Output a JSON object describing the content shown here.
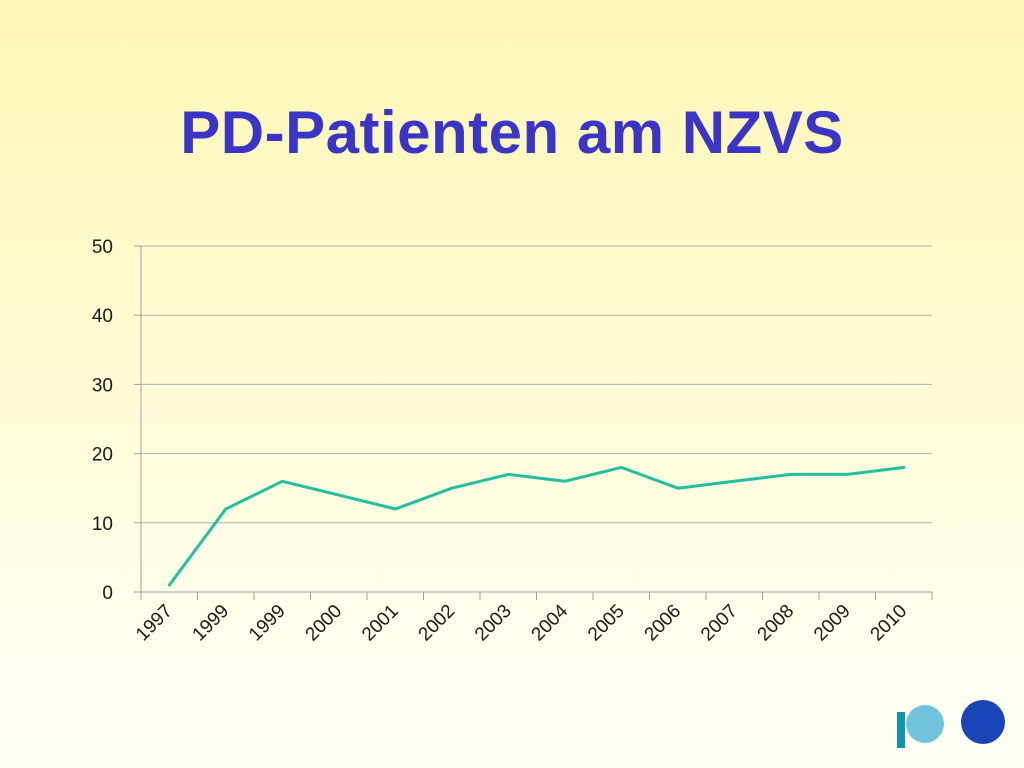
{
  "slide": {
    "title": "PD-Patienten am NZVS",
    "title_color": "#3a35c6"
  },
  "chart_data": {
    "type": "line",
    "categories": [
      "1997",
      "1999",
      "1999",
      "2000",
      "2001",
      "2002",
      "2003",
      "2004",
      "2005",
      "2006",
      "2007",
      "2008",
      "2009",
      "2010"
    ],
    "series": [
      {
        "values": [
          1,
          12,
          16,
          14,
          12,
          15,
          17,
          16,
          18,
          15,
          16,
          17,
          17,
          18
        ],
        "color": "#20c0a0"
      }
    ],
    "title": "",
    "xlabel": "",
    "ylabel": "",
    "ylim": [
      0,
      50
    ],
    "yticks": [
      0,
      10,
      20,
      30,
      40,
      50
    ],
    "grid": true,
    "legend": "none",
    "gridline_color": "#b0b0b0",
    "axis_color": "#a0a0a0"
  },
  "logo": {
    "left_color": "#6fc3dc",
    "bar_color": "#0f93b0",
    "right_color": "#1a45b8",
    "icon": "hospital-logo-icon"
  }
}
